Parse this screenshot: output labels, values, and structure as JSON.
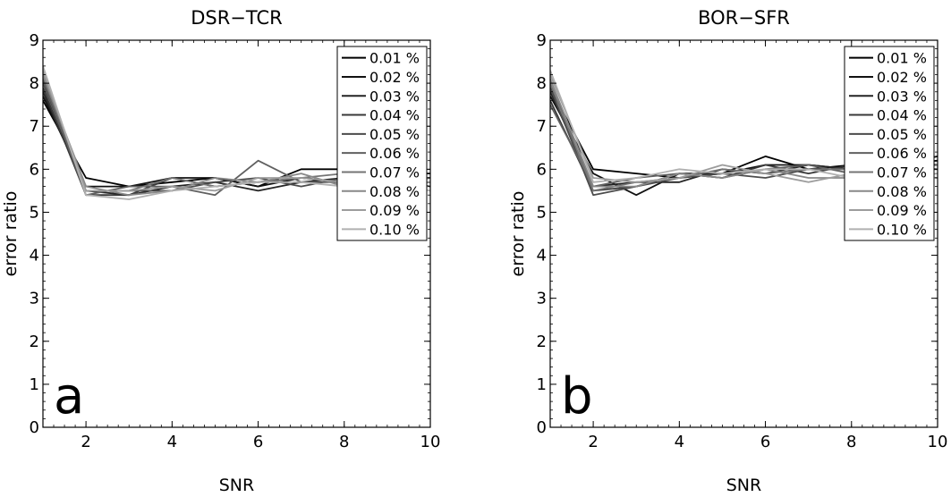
{
  "chart_data": [
    {
      "type": "line",
      "title": "DSR−TCR",
      "panel_label": "a",
      "xlabel": "SNR",
      "ylabel": "error ratio",
      "xlim": [
        1,
        10
      ],
      "ylim": [
        0,
        9
      ],
      "xticks": [
        2,
        4,
        6,
        8,
        10
      ],
      "yticks": [
        0,
        1,
        2,
        3,
        4,
        5,
        6,
        7,
        8,
        9
      ],
      "grid": false,
      "legend": "top-right",
      "x": [
        1,
        2,
        3,
        4,
        5,
        6,
        7,
        8,
        9,
        10
      ],
      "series": [
        {
          "name": "0.01 %",
          "color": "#000000",
          "values": [
            7.6,
            5.8,
            5.6,
            5.7,
            5.8,
            5.6,
            6.0,
            6.0,
            5.9,
            5.9
          ]
        },
        {
          "name": "0.02 %",
          "color": "#121212",
          "values": [
            7.7,
            5.6,
            5.6,
            5.8,
            5.8,
            5.6,
            5.8,
            5.7,
            5.8,
            5.8
          ]
        },
        {
          "name": "0.03 %",
          "color": "#242424",
          "values": [
            7.8,
            5.5,
            5.4,
            5.6,
            5.7,
            5.5,
            5.7,
            5.8,
            5.7,
            5.7
          ]
        },
        {
          "name": "0.04 %",
          "color": "#383838",
          "values": [
            7.9,
            5.4,
            5.4,
            5.8,
            5.6,
            5.7,
            5.8,
            5.7,
            5.8,
            5.6
          ]
        },
        {
          "name": "0.05 %",
          "color": "#4c4c4c",
          "values": [
            8.0,
            5.5,
            5.5,
            5.5,
            5.7,
            5.8,
            5.6,
            5.8,
            5.7,
            5.8
          ]
        },
        {
          "name": "0.06 %",
          "color": "#606060",
          "values": [
            8.1,
            5.4,
            5.6,
            5.6,
            5.4,
            6.2,
            5.7,
            5.7,
            5.6,
            5.7
          ]
        },
        {
          "name": "0.07 %",
          "color": "#747474",
          "values": [
            8.2,
            5.5,
            5.5,
            5.8,
            5.6,
            5.7,
            5.8,
            5.9,
            5.6,
            5.8
          ]
        },
        {
          "name": "0.08 %",
          "color": "#888888",
          "values": [
            8.2,
            5.6,
            5.4,
            5.5,
            5.8,
            5.7,
            5.9,
            5.6,
            5.7,
            5.6
          ]
        },
        {
          "name": "0.09 %",
          "color": "#9c9c9c",
          "values": [
            8.3,
            5.5,
            5.5,
            5.6,
            5.5,
            5.8,
            5.8,
            5.7,
            5.8,
            5.7
          ]
        },
        {
          "name": "0.10 %",
          "color": "#b0b0b0",
          "values": [
            8.4,
            5.4,
            5.3,
            5.5,
            5.6,
            5.7,
            5.7,
            5.6,
            5.7,
            5.5
          ]
        }
      ]
    },
    {
      "type": "line",
      "title": "BOR−SFR",
      "panel_label": "b",
      "xlabel": "SNR",
      "ylabel": "error ratio",
      "xlim": [
        1,
        10
      ],
      "ylim": [
        0,
        9
      ],
      "xticks": [
        2,
        4,
        6,
        8,
        10
      ],
      "yticks": [
        0,
        1,
        2,
        3,
        4,
        5,
        6,
        7,
        8,
        9
      ],
      "grid": false,
      "legend": "top-right",
      "x": [
        1,
        2,
        3,
        4,
        5,
        6,
        7,
        8,
        9,
        10
      ],
      "series": [
        {
          "name": "0.01 %",
          "color": "#000000",
          "values": [
            7.9,
            6.0,
            5.9,
            5.8,
            5.9,
            6.3,
            6.0,
            6.1,
            6.1,
            6.2
          ]
        },
        {
          "name": "0.02 %",
          "color": "#121212",
          "values": [
            7.7,
            5.9,
            5.4,
            5.9,
            5.9,
            6.1,
            6.1,
            6.0,
            6.1,
            6.3
          ]
        },
        {
          "name": "0.03 %",
          "color": "#242424",
          "values": [
            7.8,
            5.6,
            5.7,
            5.7,
            6.0,
            5.9,
            6.1,
            6.0,
            6.2,
            6.1
          ]
        },
        {
          "name": "0.04 %",
          "color": "#383838",
          "values": [
            7.6,
            5.5,
            5.6,
            5.9,
            5.8,
            6.1,
            5.9,
            6.1,
            6.0,
            6.2
          ]
        },
        {
          "name": "0.05 %",
          "color": "#4c4c4c",
          "values": [
            7.9,
            5.4,
            5.6,
            5.8,
            5.9,
            5.8,
            6.0,
            6.0,
            6.1,
            6.0
          ]
        },
        {
          "name": "0.06 %",
          "color": "#606060",
          "values": [
            7.5,
            5.6,
            5.8,
            5.9,
            5.8,
            6.0,
            6.1,
            5.9,
            6.0,
            6.1
          ]
        },
        {
          "name": "0.07 %",
          "color": "#747474",
          "values": [
            8.0,
            5.5,
            5.7,
            5.8,
            6.0,
            5.9,
            6.0,
            6.0,
            5.9,
            6.0
          ]
        },
        {
          "name": "0.08 %",
          "color": "#888888",
          "values": [
            8.1,
            5.6,
            5.6,
            5.9,
            5.8,
            6.0,
            5.8,
            5.8,
            5.9,
            5.8
          ]
        },
        {
          "name": "0.09 %",
          "color": "#9c9c9c",
          "values": [
            8.2,
            5.8,
            5.7,
            5.8,
            6.1,
            5.9,
            5.7,
            5.9,
            5.8,
            5.9
          ]
        },
        {
          "name": "0.10 %",
          "color": "#b0b0b0",
          "values": [
            8.3,
            5.7,
            5.8,
            6.0,
            5.9,
            6.0,
            6.0,
            5.8,
            5.9,
            6.0
          ]
        }
      ]
    }
  ]
}
